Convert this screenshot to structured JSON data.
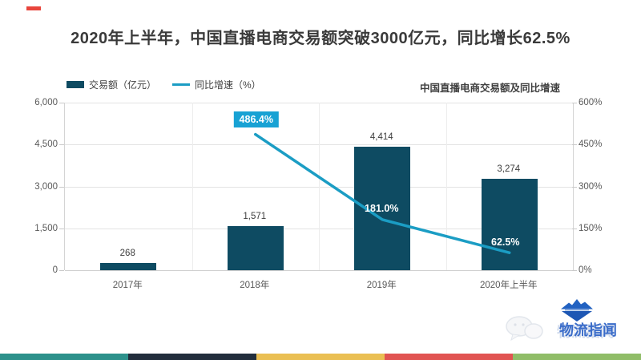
{
  "title": "2020年上半年，中国直播电商交易额突破3000亿元，同比增长62.5%",
  "legend": {
    "bar_label": "交易额（亿元）",
    "line_label": "同比增速（%）"
  },
  "chart_subtitle": "中国直播电商交易额及同比增速",
  "chart_data": {
    "type": "bar+line",
    "title": "中国直播电商交易额及同比增速",
    "categories": [
      "2017年",
      "2018年",
      "2019年",
      "2020年上半年"
    ],
    "series": [
      {
        "name": "交易额（亿元）",
        "type": "bar",
        "axis": "left",
        "values": [
          268,
          1571,
          4414,
          3274
        ],
        "labels": [
          "268",
          "1,571",
          "4,414",
          "3,274"
        ],
        "color": "#0e4b62"
      },
      {
        "name": "同比增速（%）",
        "type": "line",
        "axis": "right",
        "values": [
          null,
          486.4,
          181.0,
          62.5
        ],
        "labels": [
          "486.4%",
          "181.0%",
          "62.5%"
        ],
        "color": "#1b9dc4",
        "label_box_color": "#18a2d4"
      }
    ],
    "left_axis": {
      "ticks": [
        "6,000",
        "4,500",
        "3,000",
        "1,500",
        "0"
      ],
      "range": [
        0,
        6000
      ]
    },
    "right_axis": {
      "ticks": [
        "600%",
        "450%",
        "300%",
        "150%",
        "0%"
      ],
      "range": [
        0,
        600
      ]
    },
    "grid": true,
    "legend_position": "top-left"
  },
  "footer": {
    "colors": [
      "#2d918b",
      "#222e3c",
      "#eabf53",
      "#e15452",
      "#90bd68"
    ]
  },
  "logo": {
    "name": "物流指闻",
    "icon": "iceberg-diamond",
    "icon_color": "#2161c1"
  },
  "accent": {
    "red_mark": "#e8453c"
  }
}
